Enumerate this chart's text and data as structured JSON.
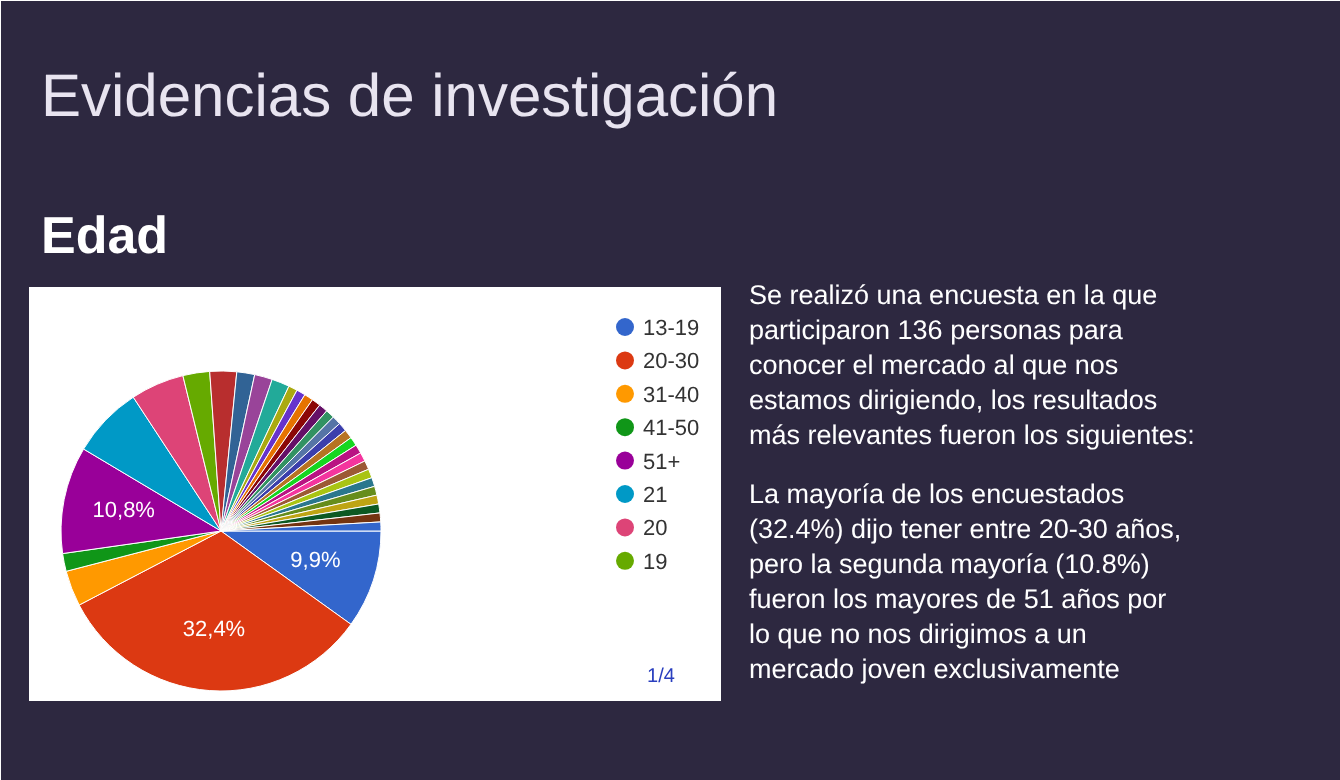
{
  "chart_data": {
    "type": "pie",
    "title": "Evidencias de investigación",
    "subtitle": "Edad",
    "categories": [
      "13-19",
      "20-30",
      "31-40",
      "41-50",
      "51+",
      "21",
      "20",
      "19",
      null,
      null,
      null,
      null,
      null,
      null,
      null,
      null,
      null,
      null,
      null,
      null,
      null,
      null,
      null,
      null,
      null,
      null,
      null,
      null,
      null,
      null,
      null,
      null
    ],
    "values": [
      9.9,
      32.4,
      3.6,
      1.8,
      10.8,
      7.2,
      5.4,
      2.7,
      2.7,
      1.8,
      1.8,
      1.8,
      0.9,
      0.9,
      0.9,
      0.9,
      0.9,
      0.9,
      0.9,
      0.9,
      0.9,
      0.9,
      0.9,
      0.9,
      0.9,
      0.9,
      0.9,
      0.9,
      0.9,
      0.9,
      0.9,
      0.9
    ],
    "value_labels": [
      "9,9%",
      "32,4%",
      null,
      null,
      "10,8%",
      null,
      null,
      null,
      null,
      null,
      null,
      null,
      null,
      null,
      null,
      null,
      null,
      null,
      null,
      null,
      null,
      null,
      null,
      null,
      null,
      null,
      null,
      null,
      null,
      null,
      null,
      null
    ],
    "colors": [
      "#3366cc",
      "#dc3912",
      "#ff9900",
      "#109618",
      "#990099",
      "#0099c6",
      "#dd4477",
      "#66aa00",
      "#b82e2e",
      "#316395",
      "#994499",
      "#22aa99",
      "#aaaa11",
      "#6633cc",
      "#e67300",
      "#8b0707",
      "#651067",
      "#329262",
      "#5574a6",
      "#3b3eac",
      "#b77322",
      "#16d620",
      "#b91383",
      "#f4359e",
      "#9c5935",
      "#a9c413",
      "#2a778d",
      "#668d1c",
      "#bea413",
      "#0c5922",
      "#743411",
      "#3366cc"
    ],
    "legend": "right",
    "annotations": [
      "1/4",
      "Se realizó una encuesta en la que",
      "participaron 136 personas para",
      "conocer el mercado al que nos",
      "estamos dirigiendo, los resultados",
      "más relevantes fueron los siguientes:",
      "La mayoría de los encuestados",
      "(32.4%) dijo tener entre 20-30 años,",
      "pero la segunda mayoría (10.8%)",
      "fueron los mayores de 51 años por",
      "lo que no nos dirigimos a un",
      "mercado joven exclusivamente"
    ]
  }
}
